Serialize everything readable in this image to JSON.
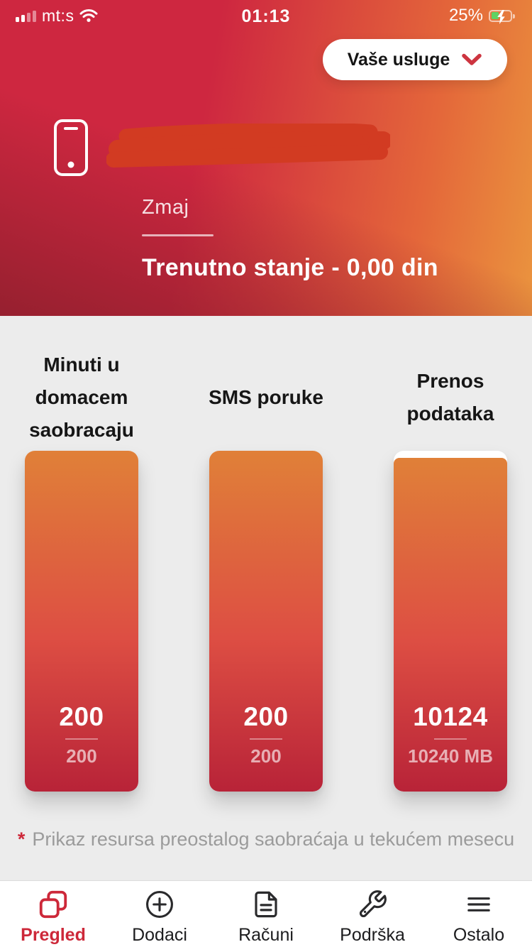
{
  "status_bar": {
    "carrier": "mt:s",
    "time": "01:13",
    "battery_percent": "25%",
    "icons": {
      "signal": "signal-strength-icon",
      "wifi": "wifi-icon",
      "battery": "battery-charging-icon"
    }
  },
  "header": {
    "services_button_label": "Vaše usluge",
    "profile_name": "Zmaj",
    "balance_text": "Trenutno stanje - 0,00 din"
  },
  "usage": {
    "columns": [
      {
        "title_lines": [
          "Minuti u",
          "domacem",
          "saobracaju"
        ],
        "remaining": "200",
        "total": "200",
        "fill_percent": 100
      },
      {
        "title_lines": [
          "SMS poruke"
        ],
        "remaining": "200",
        "total": "200",
        "fill_percent": 100
      },
      {
        "title_lines": [
          "Prenos",
          "podataka"
        ],
        "remaining": "10124",
        "total": "10240 MB",
        "fill_percent": 98
      }
    ],
    "footnote": {
      "asterisk": "*",
      "text": "Prikaz resursa preostalog saobraćaja u tekućem mesecu"
    }
  },
  "tab_bar": {
    "tabs": [
      {
        "label": "Pregled",
        "icon": "overview-cards-icon",
        "active": true
      },
      {
        "label": "Dodaci",
        "icon": "add-circle-icon",
        "active": false
      },
      {
        "label": "Računi",
        "icon": "invoice-document-icon",
        "active": false
      },
      {
        "label": "Podrška",
        "icon": "wrench-icon",
        "active": false
      },
      {
        "label": "Ostalo",
        "icon": "menu-lines-icon",
        "active": false
      }
    ]
  },
  "colors": {
    "accent": "#cd2839",
    "header_red": "#ce2740",
    "header_dark_red": "#96202f",
    "header_orange": "#ea943e",
    "bar_top": "#e08038",
    "bar_mid": "#dd4e43",
    "bar_bottom": "#b82338",
    "page_bg": "#ececec",
    "scribble": "#d23b22",
    "battery_green": "#5fd263"
  }
}
